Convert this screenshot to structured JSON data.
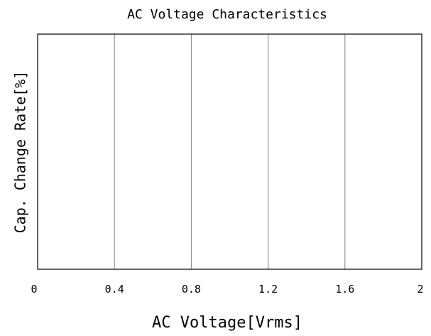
{
  "chart_data": {
    "type": "line",
    "title": "AC Voltage Characteristics",
    "xlabel": "AC Voltage[Vrms]",
    "ylabel": "Cap. Change Rate[%]",
    "xlim": [
      0,
      2
    ],
    "xticks": [
      0,
      0.4,
      0.8,
      1.2,
      1.6,
      2
    ],
    "xtick_labels": [
      "0",
      "0.4",
      "0.8",
      "1.2",
      "1.6",
      "2"
    ],
    "grid": "vertical",
    "colors": {
      "axes": "#000000",
      "grid": "#808080",
      "background": "#ffffff"
    },
    "series": []
  }
}
